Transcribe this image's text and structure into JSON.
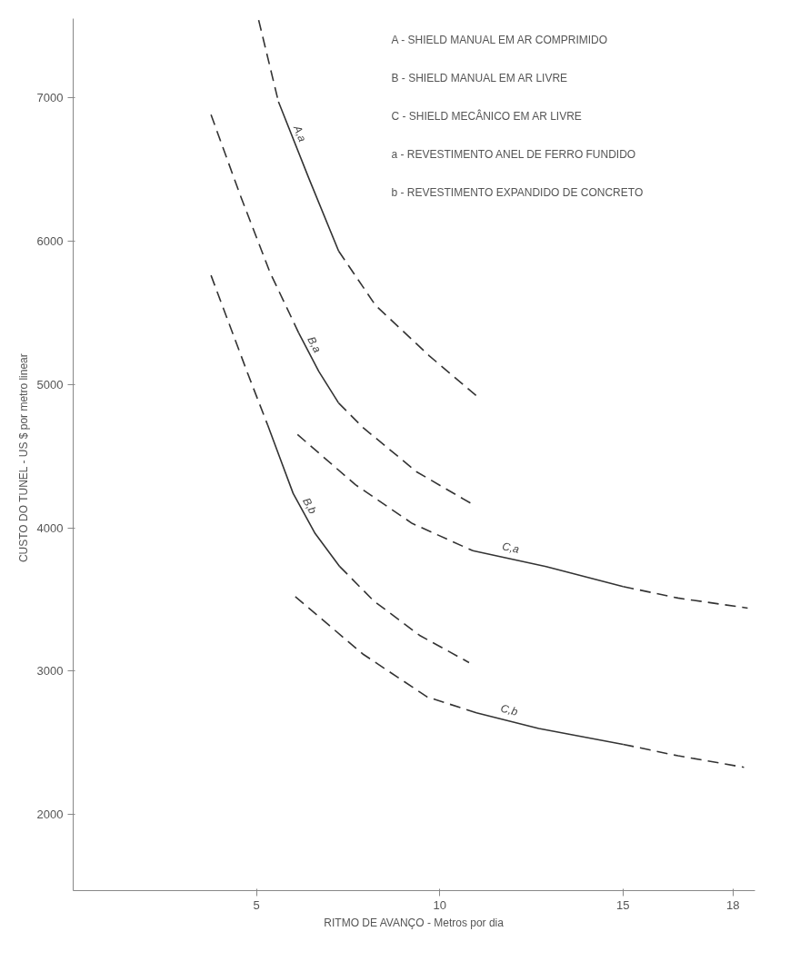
{
  "chart_data": {
    "type": "line",
    "xlabel": "RITMO DE AVANÇO - Metros por dia",
    "ylabel": "CUSTO DO TUNEL  -  US $ por metro linear",
    "xlim": [
      0,
      18.6
    ],
    "ylim": [
      1470,
      7550
    ],
    "xticks": [
      5,
      10,
      15,
      18
    ],
    "yticks": [
      2000,
      3000,
      4000,
      5000,
      6000,
      7000
    ],
    "grid": false,
    "marker": "none",
    "annotations": [
      "A - SHIELD MANUAL EM AR COMPRIMIDO",
      "B - SHIELD MANUAL EM AR LIVRE",
      "C - SHIELD MECÂNICO EM AR LIVRE",
      "a - REVESTIMENTO ANEL DE FERRO FUNDIDO",
      "b - REVESTIMENTO EXPANDIDO DE CONCRETO"
    ],
    "series": [
      {
        "color": "#333333",
        "line_style": "dashed",
        "x": [
          5.06,
          5.6
        ],
        "values": [
          7540,
          6970
        ]
      },
      {
        "name": "A,a",
        "color": "#333333",
        "line_style": "solid",
        "x": [
          5.6,
          6.44,
          7.24
        ],
        "values": [
          6970,
          6430,
          5930
        ]
      },
      {
        "color": "#333333",
        "line_style": "dashed",
        "x": [
          7.24,
          8.25,
          9.71,
          11.0
        ],
        "values": [
          5930,
          5550,
          5200,
          4920
        ]
      },
      {
        "color": "#333333",
        "line_style": "dashed",
        "x": [
          3.76,
          4.57,
          5.37,
          6.15
        ],
        "values": [
          6880,
          6310,
          5780,
          5360
        ]
      },
      {
        "name": "B,a",
        "color": "#333333",
        "line_style": "solid",
        "x": [
          6.15,
          6.7,
          7.24
        ],
        "values": [
          5360,
          5090,
          4870
        ]
      },
      {
        "color": "#333333",
        "line_style": "dashed",
        "x": [
          7.24,
          7.9,
          9.37,
          10.92
        ],
        "values": [
          4870,
          4700,
          4390,
          4160
        ]
      },
      {
        "color": "#333333",
        "line_style": "dashed",
        "x": [
          3.76,
          4.77,
          5.3
        ],
        "values": [
          5760,
          5070,
          4720
        ]
      },
      {
        "name": "B,b",
        "color": "#333333",
        "line_style": "solid",
        "x": [
          5.3,
          6.0,
          6.6,
          7.27
        ],
        "values": [
          4720,
          4240,
          3960,
          3730
        ]
      },
      {
        "color": "#333333",
        "line_style": "dashed",
        "x": [
          7.27,
          8.2,
          9.45,
          10.8
        ],
        "values": [
          3730,
          3490,
          3250,
          3060
        ]
      },
      {
        "color": "#333333",
        "line_style": "dashed",
        "x": [
          6.12,
          7.7,
          9.25,
          10.9
        ],
        "values": [
          4650,
          4300,
          4030,
          3840
        ]
      },
      {
        "name": "C,a",
        "color": "#333333",
        "line_style": "solid",
        "x": [
          10.9,
          12.9,
          15.0
        ],
        "values": [
          3840,
          3730,
          3590
        ]
      },
      {
        "color": "#333333",
        "line_style": "dashed",
        "x": [
          15.0,
          16.5,
          18.4
        ],
        "values": [
          3590,
          3510,
          3440
        ]
      },
      {
        "color": "#333333",
        "line_style": "dashed",
        "x": [
          6.06,
          7.9,
          9.66,
          11.0
        ],
        "values": [
          3520,
          3120,
          2820,
          2710
        ]
      },
      {
        "name": "C,b",
        "color": "#333333",
        "line_style": "solid",
        "x": [
          11.0,
          12.7,
          15.0
        ],
        "values": [
          2710,
          2600,
          2490
        ]
      },
      {
        "color": "#333333",
        "line_style": "dashed",
        "x": [
          15.0,
          16.5,
          18.3
        ],
        "values": [
          2490,
          2410,
          2330
        ]
      }
    ]
  }
}
